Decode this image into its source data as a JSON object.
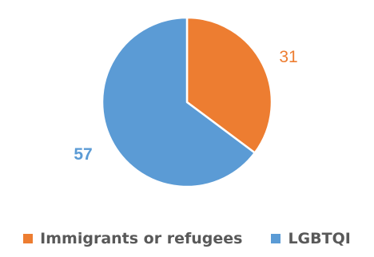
{
  "chart_data": {
    "type": "pie",
    "series": [
      {
        "name": "Immigrants or refugees",
        "value": 31,
        "color": "#ED7D31",
        "label_color": "#ED7D31",
        "label_bold": false
      },
      {
        "name": "LGBTQI",
        "value": 57,
        "color": "#5B9BD5",
        "label_color": "#5B9BD5",
        "label_bold": true
      }
    ],
    "start": "12 o'clock",
    "direction": "clockwise",
    "legend": "bottom-center",
    "slice_border_color": "#FFFFFF"
  }
}
